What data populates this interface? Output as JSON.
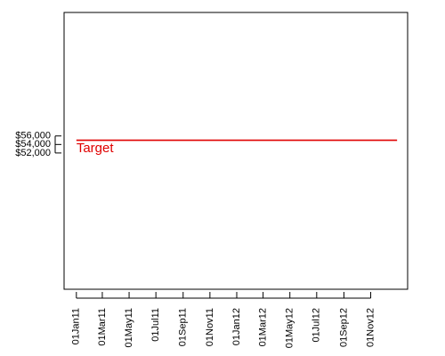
{
  "chart_data": {
    "type": "line",
    "title": "",
    "xlabel": "",
    "ylabel": "",
    "x_ticks": [
      "01Jan11",
      "01Mar11",
      "01May11",
      "01Jul11",
      "01Sep11",
      "01Nov11",
      "01Jan12",
      "01Mar12",
      "01May12",
      "01Jul12",
      "01Sep12",
      "01Nov12"
    ],
    "x_tick_dates": [
      "2011-01-01",
      "2011-03-01",
      "2011-05-01",
      "2011-07-01",
      "2011-09-01",
      "2011-11-01",
      "2012-01-01",
      "2012-03-01",
      "2012-05-01",
      "2012-07-01",
      "2012-09-01",
      "2012-11-01"
    ],
    "xlim": [
      "2010-12-04",
      "2013-01-24"
    ],
    "y_ticks": [
      52000,
      54000,
      56000
    ],
    "y_tick_labels": [
      "$52,000",
      "$54,000",
      "$56,000"
    ],
    "ylim": [
      20000,
      85000
    ],
    "series": [
      {
        "name": "",
        "color": "#e00000",
        "x": [
          "2011-01-01",
          "2012-12-31"
        ],
        "y": [
          55000,
          55000
        ]
      }
    ],
    "annotations": [
      {
        "text": "Target",
        "x": "2011-01-01",
        "y": 53000,
        "color": "#e00000"
      }
    ],
    "grid": false,
    "legend": "none"
  }
}
